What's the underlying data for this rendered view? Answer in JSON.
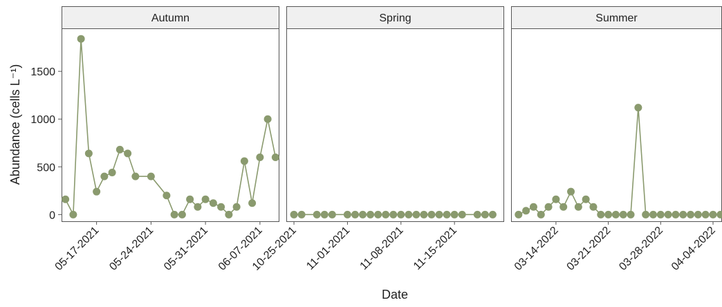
{
  "chart_data": {
    "type": "line",
    "xlabel": "Date",
    "ylabel": "Abundance (cells L⁻¹)",
    "ylim": [
      -70,
      1950
    ],
    "yticks": [
      0,
      500,
      1000,
      1500
    ],
    "grid": false,
    "colors": {
      "series": "#8a9a6e",
      "strip_fill": "#f0f0f0",
      "frame": "#555555",
      "text": "#222222"
    },
    "panels": [
      {
        "strip": "Autumn",
        "xlim": [
          -0.5,
          27.5
        ],
        "xticks": [
          {
            "x": 4,
            "label": "05-17-2021"
          },
          {
            "x": 11,
            "label": "05-24-2021"
          },
          {
            "x": 18,
            "label": "05-31-2021"
          },
          {
            "x": 25,
            "label": "06-07-2021"
          }
        ],
        "x": [
          0,
          1,
          2,
          3,
          4,
          5,
          6,
          7,
          8,
          9,
          11,
          13,
          14,
          15,
          16,
          17,
          18,
          19,
          20,
          21,
          22,
          23,
          24,
          25,
          26,
          27
        ],
        "values": [
          160,
          0,
          1840,
          640,
          240,
          400,
          440,
          680,
          640,
          400,
          400,
          200,
          0,
          0,
          160,
          80,
          160,
          120,
          80,
          0,
          80,
          560,
          120,
          600,
          1000,
          600
        ]
      },
      {
        "strip": "Spring",
        "xlim": [
          -1,
          27.5
        ],
        "xticks": [
          {
            "x": 0,
            "label": "10-25-2021"
          },
          {
            "x": 7,
            "label": "11-01-2021"
          },
          {
            "x": 14,
            "label": "11-08-2021"
          },
          {
            "x": 21,
            "label": "11-15-2021"
          }
        ],
        "x": [
          0,
          1,
          3,
          4,
          5,
          7,
          8,
          9,
          10,
          11,
          12,
          13,
          14,
          15,
          16,
          17,
          18,
          19,
          20,
          21,
          22,
          24,
          25,
          26
        ],
        "values": [
          0,
          0,
          0,
          0,
          0,
          0,
          0,
          0,
          0,
          0,
          0,
          0,
          0,
          0,
          0,
          0,
          0,
          0,
          0,
          0,
          0,
          0,
          0,
          0
        ]
      },
      {
        "strip": "Summer",
        "xlim": [
          -1,
          27.2
        ],
        "xticks": [
          {
            "x": 5,
            "label": "03-14-2022"
          },
          {
            "x": 12,
            "label": "03-21-2022"
          },
          {
            "x": 19,
            "label": "03-28-2022"
          },
          {
            "x": 26,
            "label": "04-04-2022"
          }
        ],
        "x": [
          0,
          1,
          2,
          3,
          4,
          5,
          6,
          7,
          8,
          9,
          10,
          11,
          12,
          13,
          14,
          15,
          16,
          17,
          18,
          19,
          20,
          21,
          22,
          23,
          24,
          25,
          26,
          27
        ],
        "values": [
          0,
          40,
          80,
          0,
          80,
          160,
          80,
          240,
          80,
          160,
          80,
          0,
          0,
          0,
          0,
          0,
          1120,
          0,
          0,
          0,
          0,
          0,
          0,
          0,
          0,
          0,
          0,
          0
        ]
      }
    ]
  }
}
